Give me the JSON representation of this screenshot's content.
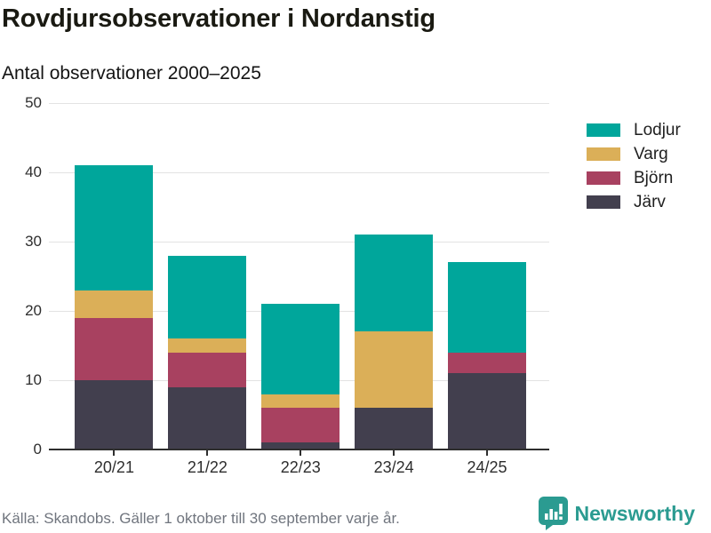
{
  "header": {
    "title": "Rovdjursobservationer i Nordanstig",
    "subtitle": "Antal observationer 2000–2025"
  },
  "chart_data": {
    "type": "bar",
    "stacked": true,
    "title": "Rovdjursobservationer i Nordanstig",
    "subtitle": "Antal observationer 2000–2025",
    "categories": [
      "20/21",
      "21/22",
      "22/23",
      "23/24",
      "24/25"
    ],
    "series": [
      {
        "name": "Järv",
        "color": "#423f4e",
        "values": [
          10,
          9,
          1,
          6,
          11
        ]
      },
      {
        "name": "Björn",
        "color": "#a84160",
        "values": [
          9,
          5,
          5,
          0,
          3
        ]
      },
      {
        "name": "Varg",
        "color": "#dbaf58",
        "values": [
          4,
          2,
          2,
          11,
          0
        ]
      },
      {
        "name": "Lodjur",
        "color": "#00a69b",
        "values": [
          18,
          12,
          13,
          14,
          13
        ]
      }
    ],
    "totals": [
      41,
      28,
      21,
      31,
      27
    ],
    "xlabel": "",
    "ylabel": "",
    "ylim": [
      0,
      50
    ],
    "yticks": [
      0,
      10,
      20,
      30,
      40,
      50
    ],
    "grid": true,
    "legend_position": "right"
  },
  "legend": {
    "items": [
      {
        "label": "Lodjur",
        "color": "#00a69b"
      },
      {
        "label": "Varg",
        "color": "#dbaf58"
      },
      {
        "label": "Björn",
        "color": "#a84160"
      },
      {
        "label": "Järv",
        "color": "#423f4e"
      }
    ]
  },
  "footer": {
    "source": "Källa: Skandobs. Gäller 1 oktober till 30 september varje år.",
    "brand": "Newsworthy",
    "brand_color": "#2b9b91"
  }
}
